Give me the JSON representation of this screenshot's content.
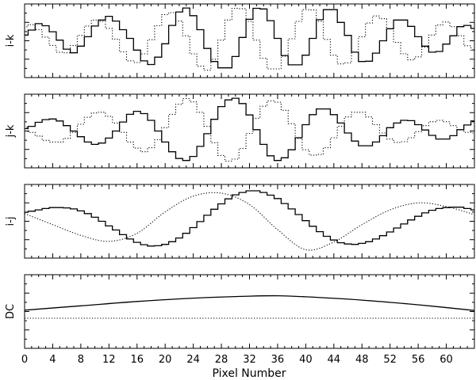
{
  "chart_data": {
    "type": "line",
    "xlabel": "Pixel Number",
    "xlim": [
      0,
      64
    ],
    "x_ticks": [
      0,
      4,
      8,
      12,
      16,
      20,
      24,
      28,
      32,
      36,
      40,
      44,
      48,
      52,
      56,
      60
    ],
    "grid": false,
    "panels": [
      {
        "ylabel": "i-k",
        "ylim": [
          -1.1,
          1.1
        ],
        "series": [
          {
            "style": "solid-step",
            "values": [
              0.17,
              0.32,
              0.51,
              0.45,
              0.27,
              0.02,
              -0.25,
              -0.36,
              -0.16,
              0.12,
              0.44,
              0.62,
              0.73,
              0.59,
              0.33,
              0.07,
              -0.28,
              -0.6,
              -0.71,
              -0.49,
              -0.09,
              0.46,
              0.86,
              0.98,
              0.75,
              0.33,
              -0.23,
              -0.62,
              -0.81,
              -0.81,
              -0.47,
              0.1,
              0.64,
              0.97,
              0.95,
              0.6,
              0.07,
              -0.44,
              -0.72,
              -0.72,
              -0.43,
              0.07,
              0.63,
              0.93,
              0.93,
              0.55,
              0.16,
              -0.34,
              -0.62,
              -0.61,
              -0.37,
              0.0,
              0.36,
              0.62,
              0.62,
              0.43,
              0.12,
              -0.16,
              -0.34,
              -0.32,
              -0.1,
              0.15,
              0.42,
              0.46,
              0.37
            ]
          },
          {
            "style": "dotted-step",
            "values": [
              0.42,
              0.48,
              0.33,
              0.11,
              -0.14,
              -0.34,
              -0.36,
              -0.14,
              0.16,
              0.44,
              0.62,
              0.58,
              0.37,
              0.05,
              -0.33,
              -0.6,
              -0.65,
              -0.39,
              0.03,
              0.45,
              0.78,
              0.84,
              0.59,
              0.15,
              -0.39,
              -0.76,
              -0.88,
              -0.55,
              0.02,
              0.62,
              0.97,
              0.96,
              0.58,
              0.02,
              -0.52,
              -0.84,
              -0.84,
              -0.46,
              0.06,
              0.58,
              0.93,
              0.92,
              0.58,
              0.04,
              -0.43,
              -0.69,
              -0.66,
              -0.34,
              0.12,
              0.53,
              0.74,
              0.66,
              0.36,
              -0.05,
              -0.39,
              -0.57,
              -0.48,
              -0.19,
              0.17,
              0.47,
              0.56,
              0.42,
              0.15,
              -0.15,
              -0.28
            ]
          }
        ]
      },
      {
        "ylabel": "j-k",
        "ylim": [
          -1.1,
          1.1
        ],
        "series": [
          {
            "style": "solid-step",
            "values": [
              0.07,
              0.14,
              0.26,
              0.34,
              0.36,
              0.3,
              0.16,
              0.0,
              -0.17,
              -0.33,
              -0.4,
              -0.36,
              -0.21,
              0.0,
              0.27,
              0.5,
              0.59,
              0.52,
              0.32,
              0.0,
              -0.33,
              -0.62,
              -0.82,
              -0.88,
              -0.76,
              -0.46,
              -0.08,
              0.35,
              0.73,
              0.93,
              0.98,
              0.82,
              0.48,
              0.04,
              -0.4,
              -0.74,
              -0.88,
              -0.8,
              -0.56,
              -0.2,
              0.19,
              0.49,
              0.66,
              0.66,
              0.49,
              0.24,
              -0.06,
              -0.3,
              -0.44,
              -0.44,
              -0.33,
              -0.14,
              0.1,
              0.24,
              0.32,
              0.31,
              0.19,
              0.03,
              -0.13,
              -0.24,
              -0.24,
              -0.14,
              0.04,
              0.18,
              0.3
            ]
          },
          {
            "style": "dotted-step",
            "values": [
              0.11,
              -0.04,
              -0.15,
              -0.28,
              -0.33,
              -0.33,
              -0.22,
              -0.04,
              0.2,
              0.41,
              0.54,
              0.56,
              0.44,
              0.24,
              -0.04,
              -0.33,
              -0.51,
              -0.62,
              -0.5,
              -0.26,
              0.1,
              0.5,
              0.8,
              0.97,
              0.87,
              0.56,
              0.14,
              -0.35,
              -0.73,
              -0.9,
              -0.84,
              -0.52,
              -0.07,
              0.38,
              0.74,
              0.9,
              0.86,
              0.62,
              0.22,
              -0.22,
              -0.56,
              -0.72,
              -0.7,
              -0.5,
              -0.2,
              0.14,
              0.42,
              0.56,
              0.56,
              0.42,
              0.19,
              -0.06,
              -0.24,
              -0.34,
              -0.32,
              -0.2,
              -0.02,
              0.16,
              0.28,
              0.32,
              0.28,
              0.16,
              0.04,
              -0.04,
              -0.06
            ]
          }
        ]
      },
      {
        "ylabel": "i-j",
        "ylim": [
          -1.1,
          1.1
        ],
        "series": [
          {
            "style": "solid-step",
            "values": [
              0.27,
              0.3,
              0.34,
              0.38,
              0.41,
              0.41,
              0.4,
              0.37,
              0.31,
              0.23,
              0.12,
              0.0,
              -0.14,
              -0.26,
              -0.4,
              -0.53,
              -0.63,
              -0.7,
              -0.74,
              -0.73,
              -0.69,
              -0.61,
              -0.5,
              -0.36,
              -0.19,
              -0.01,
              0.18,
              0.36,
              0.52,
              0.67,
              0.79,
              0.86,
              0.91,
              0.91,
              0.86,
              0.78,
              0.68,
              0.53,
              0.37,
              0.2,
              0.02,
              -0.15,
              -0.31,
              -0.45,
              -0.56,
              -0.64,
              -0.68,
              -0.69,
              -0.66,
              -0.61,
              -0.53,
              -0.43,
              -0.32,
              -0.2,
              -0.08,
              0.04,
              0.15,
              0.25,
              0.33,
              0.38,
              0.41,
              0.42,
              0.42,
              0.38,
              0.34
            ]
          },
          {
            "style": "dotted-smooth",
            "x": [
              0,
              4,
              8,
              12,
              16,
              20,
              24,
              28,
              32,
              36,
              40,
              44,
              48,
              52,
              56,
              60,
              64
            ],
            "values": [
              0.23,
              -0.1,
              -0.42,
              -0.6,
              -0.36,
              0.28,
              0.75,
              0.84,
              0.5,
              -0.25,
              -0.85,
              -0.62,
              -0.1,
              0.34,
              0.55,
              0.44,
              0.2
            ]
          }
        ]
      },
      {
        "ylabel": "DC",
        "ylim": [
          -1.1,
          1.1
        ],
        "series": [
          {
            "style": "solid-smooth",
            "x": [
              0,
              8,
              16,
              24,
              32,
              36,
              40,
              48,
              56,
              64
            ],
            "values": [
              0.04,
              0.17,
              0.3,
              0.4,
              0.46,
              0.47,
              0.44,
              0.34,
              0.2,
              0.03
            ]
          },
          {
            "style": "dotted-smooth",
            "x": [
              0,
              64
            ],
            "values": [
              -0.2,
              -0.2
            ]
          }
        ]
      }
    ]
  }
}
